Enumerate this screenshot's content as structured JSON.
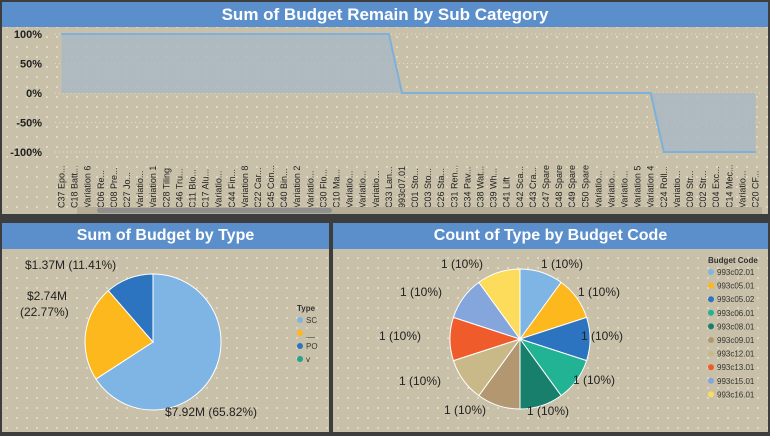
{
  "charts": {
    "area": {
      "title": "Sum of Budget Remain by Sub Category"
    },
    "type_pie": {
      "title": "Sum of Budget by Type",
      "legend_title": "Type"
    },
    "code_pie": {
      "title": "Count of Type by Budget Code",
      "legend_title": "Budget Code"
    }
  },
  "chart_data": [
    {
      "type": "area",
      "title": "Sum of Budget Remain by Sub Category",
      "y_ticks": [
        "100%",
        "50%",
        "0%",
        "-50%",
        "-100%"
      ],
      "ylim": [
        -1.0,
        1.0
      ],
      "categories": [
        "C37 Epo...",
        "C18 Batt...",
        "Variation 6",
        "C06 Re...",
        "C08 Pre...",
        "C27 Jo...",
        "Variatio...",
        "Variation 1",
        "C28 Tiling",
        "C46 Tru...",
        "C11 Blo...",
        "C17 Alu...",
        "Variatio...",
        "C44 Fin...",
        "Variation 8",
        "C22 Car...",
        "C45 Con...",
        "C40 Bin...",
        "Variation 2",
        "Variatio...",
        "C30 Flo...",
        "C10 Ma...",
        "Variatio...",
        "Variatio...",
        "Variatio...",
        "C33 Lan...",
        "993c07.01",
        "C01 Sto...",
        "C03 Sto...",
        "C26 Sta...",
        "C31 Ren...",
        "C34 Pav...",
        "C38 Wat...",
        "C39 Wh...",
        "C41 Lift",
        "C42 Sca...",
        "C43 Cra...",
        "C47 Spare",
        "C48 Spare",
        "C49 Spare",
        "C50 Spare",
        "Variatio...",
        "Variatio...",
        "Variatio...",
        "Variation 5",
        "Variation 4",
        "C24 Roll...",
        "Variatio...",
        "C09 Str...",
        "C02 Str...",
        "C04 Exc...",
        "C14 Mec...",
        "Variatio...",
        "C20 CF..."
      ],
      "values": [
        1,
        1,
        1,
        1,
        1,
        1,
        1,
        1,
        1,
        1,
        1,
        1,
        1,
        1,
        1,
        1,
        1,
        1,
        1,
        1,
        1,
        1,
        1,
        1,
        1,
        1,
        0,
        0,
        0,
        0,
        0,
        0,
        0,
        0,
        0,
        0,
        0,
        0,
        0,
        0,
        0,
        0,
        0,
        0,
        0,
        0,
        -1,
        -1,
        -1,
        -1,
        -1,
        -1,
        -1,
        -1
      ],
      "fill_color": "#a9b9c4",
      "line_color": "#7eb0dc"
    },
    {
      "type": "pie",
      "title": "Sum of Budget by Type",
      "legend_title": "Type",
      "slices": [
        {
          "label": "SC",
          "value": 7.92,
          "data_label": "$7.92M (65.82%)",
          "color": "#7fb5e4"
        },
        {
          "label": "__",
          "value": 2.74,
          "data_label_lines": [
            "$2.74M",
            "(22.77%)"
          ],
          "color": "#fcb81c"
        },
        {
          "label": "PO",
          "value": 1.37,
          "data_label": "$1.37M (11.41%)",
          "color": "#2d74c0"
        },
        {
          "label": "v",
          "value": 0,
          "data_label": "",
          "color": "#21a58c"
        }
      ]
    },
    {
      "type": "pie",
      "title": "Count of Type by Budget Code",
      "legend_title": "Budget Code",
      "slices": [
        {
          "label": "993c02.01",
          "value": 1,
          "data_label": "1 (10%)",
          "color": "#7fb5e4"
        },
        {
          "label": "993c05.01",
          "value": 1,
          "data_label": "1 (10%)",
          "color": "#fcb81c"
        },
        {
          "label": "993c05.02",
          "value": 1,
          "data_label": "1 (10%)",
          "color": "#2d74c0"
        },
        {
          "label": "993c06.01",
          "value": 1,
          "data_label": "1 (10%)",
          "color": "#21b394"
        },
        {
          "label": "993c08.01",
          "value": 1,
          "data_label": "1 (10%)",
          "color": "#177f6c"
        },
        {
          "label": "993c09.01",
          "value": 1,
          "data_label": "1 (10%)",
          "color": "#b39770"
        },
        {
          "label": "993c12.01",
          "value": 1,
          "data_label": "1 (10%)",
          "color": "#c9b989"
        },
        {
          "label": "993c13.01",
          "value": 1,
          "data_label": "1 (10%)",
          "color": "#ef5b2a"
        },
        {
          "label": "993c15.01",
          "value": 1,
          "data_label": "1 (10%)",
          "color": "#84a6dc"
        },
        {
          "label": "993c16.01",
          "value": 1,
          "data_label": "1 (10%)",
          "color": "#fddc5c"
        }
      ]
    }
  ]
}
